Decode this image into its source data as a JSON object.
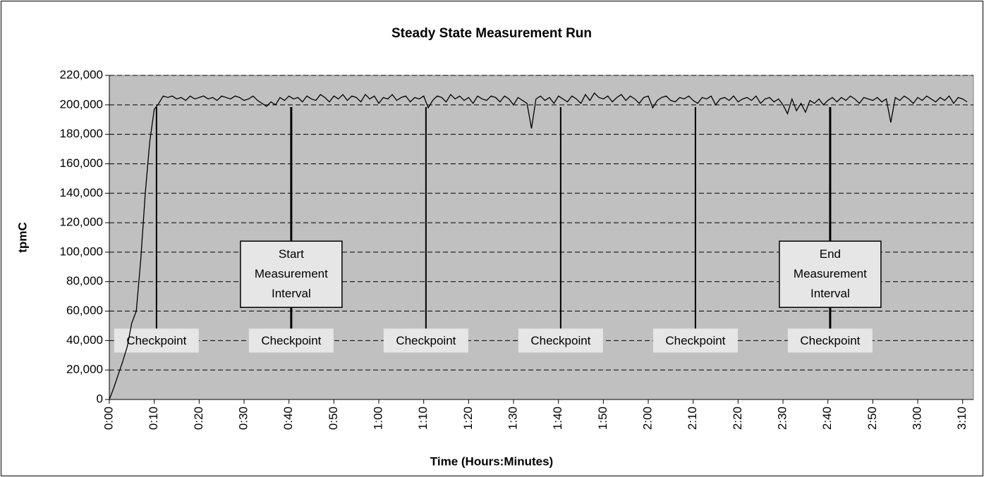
{
  "chart_data": {
    "type": "line",
    "title": "Steady State Measurement Run",
    "x_label": "Time (Hours:Minutes)",
    "y_label": "tpmC",
    "color": "#000000",
    "plot_background": "#c0c0c0",
    "grid": true,
    "xlim": [
      0,
      192.4
    ],
    "ylim": [
      0,
      220000
    ],
    "xticks": [
      {
        "value": 0,
        "label": "0:00"
      },
      {
        "value": 10,
        "label": "0:10"
      },
      {
        "value": 20,
        "label": "0:20"
      },
      {
        "value": 30,
        "label": "0:30"
      },
      {
        "value": 40,
        "label": "0:40"
      },
      {
        "value": 50,
        "label": "0:50"
      },
      {
        "value": 60,
        "label": "1:00"
      },
      {
        "value": 70,
        "label": "1:10"
      },
      {
        "value": 80,
        "label": "1:20"
      },
      {
        "value": 90,
        "label": "1:30"
      },
      {
        "value": 100,
        "label": "1:40"
      },
      {
        "value": 110,
        "label": "1:50"
      },
      {
        "value": 120,
        "label": "2:00"
      },
      {
        "value": 130,
        "label": "2:10"
      },
      {
        "value": 140,
        "label": "2:20"
      },
      {
        "value": 150,
        "label": "2:30"
      },
      {
        "value": 160,
        "label": "2:40"
      },
      {
        "value": 170,
        "label": "2:50"
      },
      {
        "value": 180,
        "label": "3:00"
      },
      {
        "value": 190,
        "label": "3:10"
      }
    ],
    "yticks": [
      0,
      {
        "value": 20000,
        "label": "20,000"
      },
      {
        "value": 40000,
        "label": "40,000"
      },
      {
        "value": 60000,
        "label": "60,000"
      },
      {
        "value": 80000,
        "label": "80,000"
      },
      {
        "value": 100000,
        "label": "100,000"
      },
      {
        "value": 120000,
        "label": "120,000"
      },
      {
        "value": 140000,
        "label": "140,000"
      },
      {
        "value": 160000,
        "label": "160,000"
      },
      {
        "value": 180000,
        "label": "180,000"
      },
      {
        "value": 200000,
        "label": "200,000"
      },
      {
        "value": 220000,
        "label": "220,000"
      }
    ],
    "x": [
      0,
      1,
      2,
      3,
      4,
      5,
      6,
      7,
      8,
      9,
      10,
      11,
      12,
      13,
      14,
      15,
      16,
      17,
      18,
      19,
      20,
      21,
      22,
      23,
      24,
      25,
      26,
      27,
      28,
      29,
      30,
      31,
      32,
      33,
      34,
      35,
      36,
      37,
      38,
      39,
      40,
      41,
      42,
      43,
      44,
      45,
      46,
      47,
      48,
      49,
      50,
      51,
      52,
      53,
      54,
      55,
      56,
      57,
      58,
      59,
      60,
      61,
      62,
      63,
      64,
      65,
      66,
      67,
      68,
      69,
      70,
      71,
      72,
      73,
      74,
      75,
      76,
      77,
      78,
      79,
      80,
      81,
      82,
      83,
      84,
      85,
      86,
      87,
      88,
      89,
      90,
      91,
      92,
      93,
      94,
      95,
      96,
      97,
      98,
      99,
      100,
      101,
      102,
      103,
      104,
      105,
      106,
      107,
      108,
      109,
      110,
      111,
      112,
      113,
      114,
      115,
      116,
      117,
      118,
      119,
      120,
      121,
      122,
      123,
      124,
      125,
      126,
      127,
      128,
      129,
      130,
      131,
      132,
      133,
      134,
      135,
      136,
      137,
      138,
      139,
      140,
      141,
      142,
      143,
      144,
      145,
      146,
      147,
      148,
      149,
      150,
      151,
      152,
      153,
      154,
      155,
      156,
      157,
      158,
      159,
      160,
      161,
      162,
      163,
      164,
      165,
      166,
      167,
      168,
      169,
      170,
      171,
      172,
      173,
      174,
      175,
      176,
      177,
      178,
      179,
      180,
      181,
      182,
      183,
      184,
      185,
      186,
      187,
      188,
      189,
      190,
      191
    ],
    "values": [
      0,
      8000,
      17000,
      26000,
      36000,
      52000,
      60000,
      95000,
      140000,
      175000,
      197000,
      201000,
      206000,
      205000,
      206000,
      204000,
      205000,
      203000,
      206000,
      204000,
      205000,
      206000,
      204000,
      205000,
      203000,
      206000,
      205000,
      204000,
      206000,
      205000,
      203000,
      204000,
      206000,
      203000,
      201000,
      199000,
      202000,
      200000,
      205000,
      203000,
      206000,
      204000,
      205000,
      202000,
      206000,
      204000,
      203000,
      207000,
      205000,
      202000,
      206000,
      204000,
      207000,
      203000,
      206000,
      205000,
      202000,
      207000,
      204000,
      206000,
      201000,
      205000,
      204000,
      207000,
      203000,
      205000,
      206000,
      202000,
      205000,
      204000,
      206000,
      198000,
      203000,
      206000,
      205000,
      202000,
      207000,
      204000,
      206000,
      203000,
      205000,
      201000,
      206000,
      204000,
      203000,
      206000,
      205000,
      202000,
      206000,
      204000,
      200000,
      205000,
      203000,
      201000,
      184000,
      204000,
      206000,
      203000,
      205000,
      201000,
      206000,
      204000,
      202000,
      206000,
      204000,
      201000,
      207000,
      203000,
      208000,
      205000,
      204000,
      206000,
      202000,
      205000,
      207000,
      203000,
      206000,
      204000,
      201000,
      205000,
      206000,
      198000,
      203000,
      205000,
      206000,
      203000,
      202000,
      205000,
      204000,
      206000,
      203000,
      201000,
      205000,
      204000,
      206000,
      200000,
      204000,
      205000,
      203000,
      206000,
      202000,
      204000,
      205000,
      203000,
      206000,
      201000,
      204000,
      205000,
      202000,
      204000,
      200000,
      194000,
      204000,
      196000,
      201000,
      195000,
      203000,
      201000,
      204000,
      200000,
      203000,
      205000,
      202000,
      205000,
      203000,
      206000,
      204000,
      201000,
      205000,
      204000,
      203000,
      205000,
      202000,
      204000,
      188000,
      205000,
      203000,
      206000,
      204000,
      201000,
      205000,
      203000,
      206000,
      204000,
      202000,
      205000,
      203000,
      206000,
      201000,
      205000,
      204000,
      202000
    ],
    "checkpoints": [
      {
        "x": 10.5,
        "y": 40000,
        "label": "Checkpoint"
      },
      {
        "x": 40.5,
        "y": 40000,
        "label": "Checkpoint"
      },
      {
        "x": 70.5,
        "y": 40000,
        "label": "Checkpoint"
      },
      {
        "x": 100.5,
        "y": 40000,
        "label": "Checkpoint"
      },
      {
        "x": 130.5,
        "y": 40000,
        "label": "Checkpoint"
      },
      {
        "x": 160.5,
        "y": 40000,
        "label": "Checkpoint"
      }
    ],
    "intervals": [
      {
        "x": 40.5,
        "y": 85000,
        "lines": [
          "Start",
          "Measurement",
          "Interval"
        ]
      },
      {
        "x": 160.5,
        "y": 85000,
        "lines": [
          "End",
          "Measurement",
          "Interval"
        ]
      }
    ]
  }
}
